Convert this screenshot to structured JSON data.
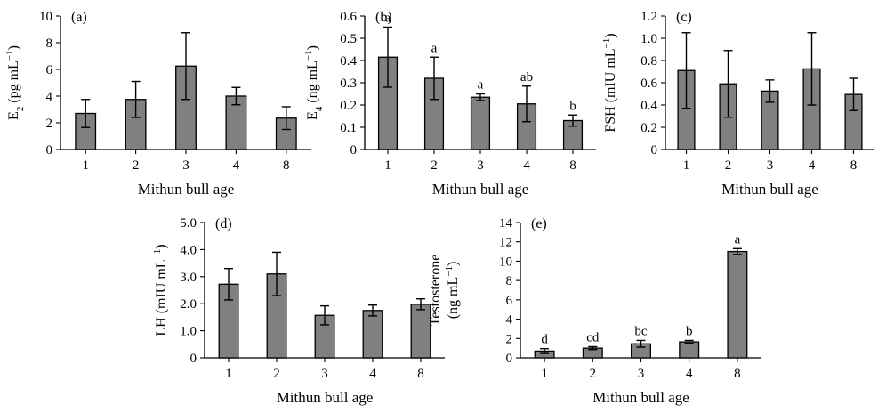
{
  "chart_data": [
    {
      "type": "bar",
      "panel_label": "(a)",
      "categories": [
        "1",
        "2",
        "3",
        "4",
        "8"
      ],
      "values": [
        2.7,
        3.75,
        6.25,
        4.0,
        2.35
      ],
      "errors": [
        1.05,
        1.35,
        2.5,
        0.65,
        0.85
      ],
      "sig_labels": [
        "",
        "",
        "",
        "",
        ""
      ],
      "xlabel": "Mithun bull age",
      "ylabel_main": "E",
      "ylabel_sub": "2",
      "ylabel_rest": " (pg mL",
      "ylabel_sup": "−1",
      "ylabel_end": ")",
      "ylim": [
        0,
        10
      ],
      "yticks": [
        "0",
        "2",
        "4",
        "6",
        "8",
        "10"
      ]
    },
    {
      "type": "bar",
      "panel_label": "(b)",
      "categories": [
        "1",
        "2",
        "3",
        "4",
        "8"
      ],
      "values": [
        0.415,
        0.32,
        0.235,
        0.205,
        0.13
      ],
      "errors": [
        0.135,
        0.095,
        0.015,
        0.08,
        0.025
      ],
      "sig_labels": [
        "a",
        "a",
        "a",
        "ab",
        "b"
      ],
      "xlabel": "Mithun bull age",
      "ylabel_main": "E",
      "ylabel_sub": "4",
      "ylabel_rest": " (ng mL",
      "ylabel_sup": "−1",
      "ylabel_end": ")",
      "ylim": [
        0,
        0.6
      ],
      "yticks": [
        "0",
        "0.1",
        "0.2",
        "0.3",
        "0.4",
        "0.5",
        "0.6"
      ]
    },
    {
      "type": "bar",
      "panel_label": "(c)",
      "categories": [
        "1",
        "2",
        "3",
        "4",
        "8"
      ],
      "values": [
        0.71,
        0.59,
        0.525,
        0.725,
        0.495
      ],
      "errors": [
        0.34,
        0.3,
        0.1,
        0.325,
        0.145
      ],
      "sig_labels": [
        "",
        "",
        "",
        "",
        ""
      ],
      "xlabel": "Mithun bull age",
      "ylabel_main": "FSH (mIU mL",
      "ylabel_sub": "",
      "ylabel_rest": "",
      "ylabel_sup": "−1",
      "ylabel_end": ")",
      "ylim": [
        0,
        1.2
      ],
      "yticks": [
        "0",
        "0.2",
        "0.4",
        "0.6",
        "0.8",
        "1.0",
        "1.2"
      ]
    },
    {
      "type": "bar",
      "panel_label": "(d)",
      "categories": [
        "1",
        "2",
        "3",
        "4",
        "8"
      ],
      "values": [
        2.72,
        3.1,
        1.57,
        1.75,
        1.98
      ],
      "errors": [
        0.58,
        0.8,
        0.35,
        0.2,
        0.2
      ],
      "sig_labels": [
        "",
        "",
        "",
        "",
        ""
      ],
      "xlabel": "Mithun bull age",
      "ylabel_main": "LH (mIU mL",
      "ylabel_sub": "",
      "ylabel_rest": "",
      "ylabel_sup": "−1",
      "ylabel_end": ")",
      "ylim": [
        0,
        5.0
      ],
      "yticks": [
        "0",
        "1.0",
        "2.0",
        "3.0",
        "4.0",
        "5.0"
      ]
    },
    {
      "type": "bar",
      "panel_label": "(e)",
      "categories": [
        "1",
        "2",
        "3",
        "4",
        "8"
      ],
      "values": [
        0.7,
        1.0,
        1.45,
        1.65,
        11.0
      ],
      "errors": [
        0.25,
        0.15,
        0.35,
        0.15,
        0.3
      ],
      "sig_labels": [
        "d",
        "cd",
        "bc",
        "b",
        "a"
      ],
      "xlabel": "Mithun bull age",
      "ylabel_line1": "Testosterone",
      "ylabel_main": "(ng mL",
      "ylabel_sub": "",
      "ylabel_rest": "",
      "ylabel_sup": "−1",
      "ylabel_end": ")",
      "ylim": [
        0,
        14
      ],
      "yticks": [
        "0",
        "2",
        "4",
        "6",
        "8",
        "10",
        "12",
        "14"
      ]
    }
  ]
}
